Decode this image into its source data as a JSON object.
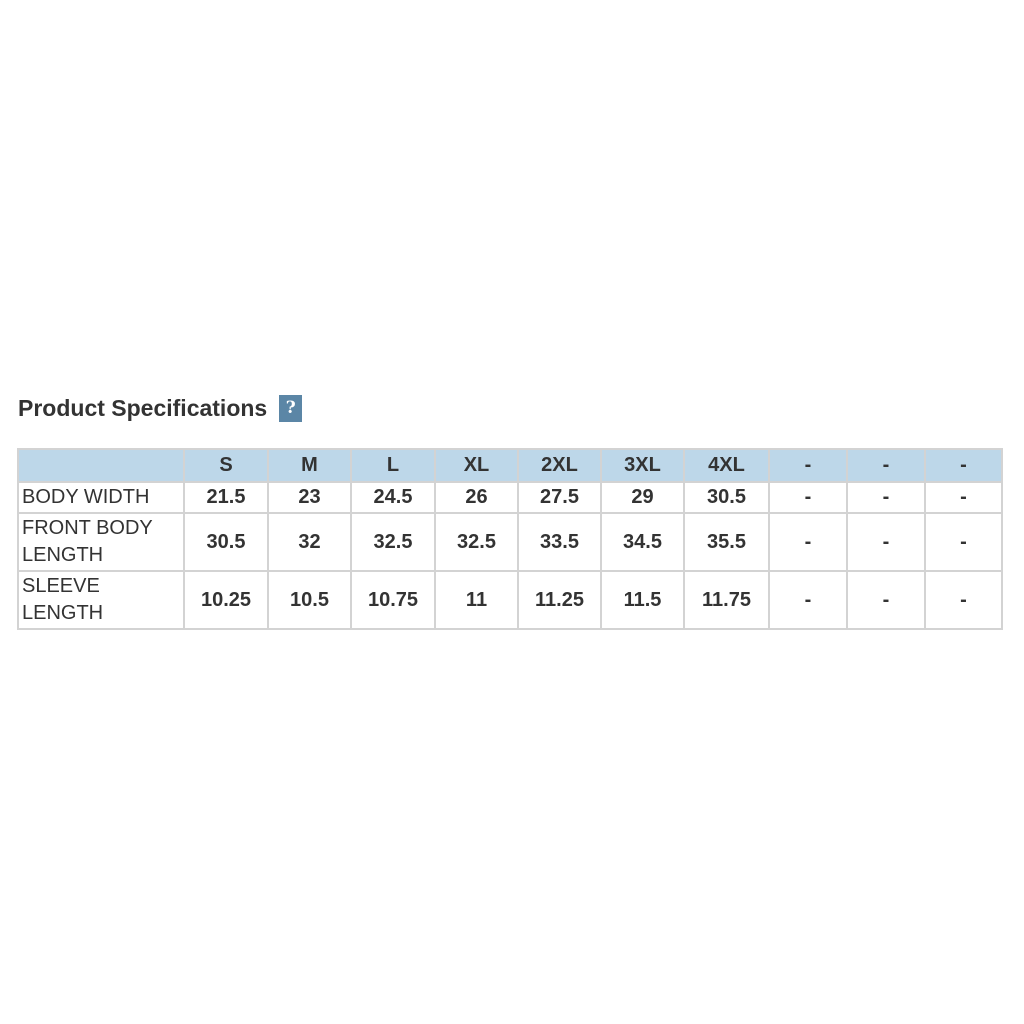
{
  "title": "Product Specifications",
  "help_icon": "question-mark-icon",
  "help_label": "?",
  "table": {
    "headers": [
      "",
      "S",
      "M",
      "L",
      "XL",
      "2XL",
      "3XL",
      "4XL",
      "-",
      "-",
      "-"
    ],
    "rows": [
      {
        "label": "BODY WIDTH",
        "values": [
          "21.5",
          "23",
          "24.5",
          "26",
          "27.5",
          "29",
          "30.5",
          "-",
          "-",
          "-"
        ]
      },
      {
        "label": "FRONT BODY LENGTH",
        "values": [
          "30.5",
          "32",
          "32.5",
          "32.5",
          "33.5",
          "34.5",
          "35.5",
          "-",
          "-",
          "-"
        ]
      },
      {
        "label": "SLEEVE LENGTH",
        "values": [
          "10.25",
          "10.5",
          "10.75",
          "11",
          "11.25",
          "11.5",
          "11.75",
          "-",
          "-",
          "-"
        ]
      }
    ]
  }
}
